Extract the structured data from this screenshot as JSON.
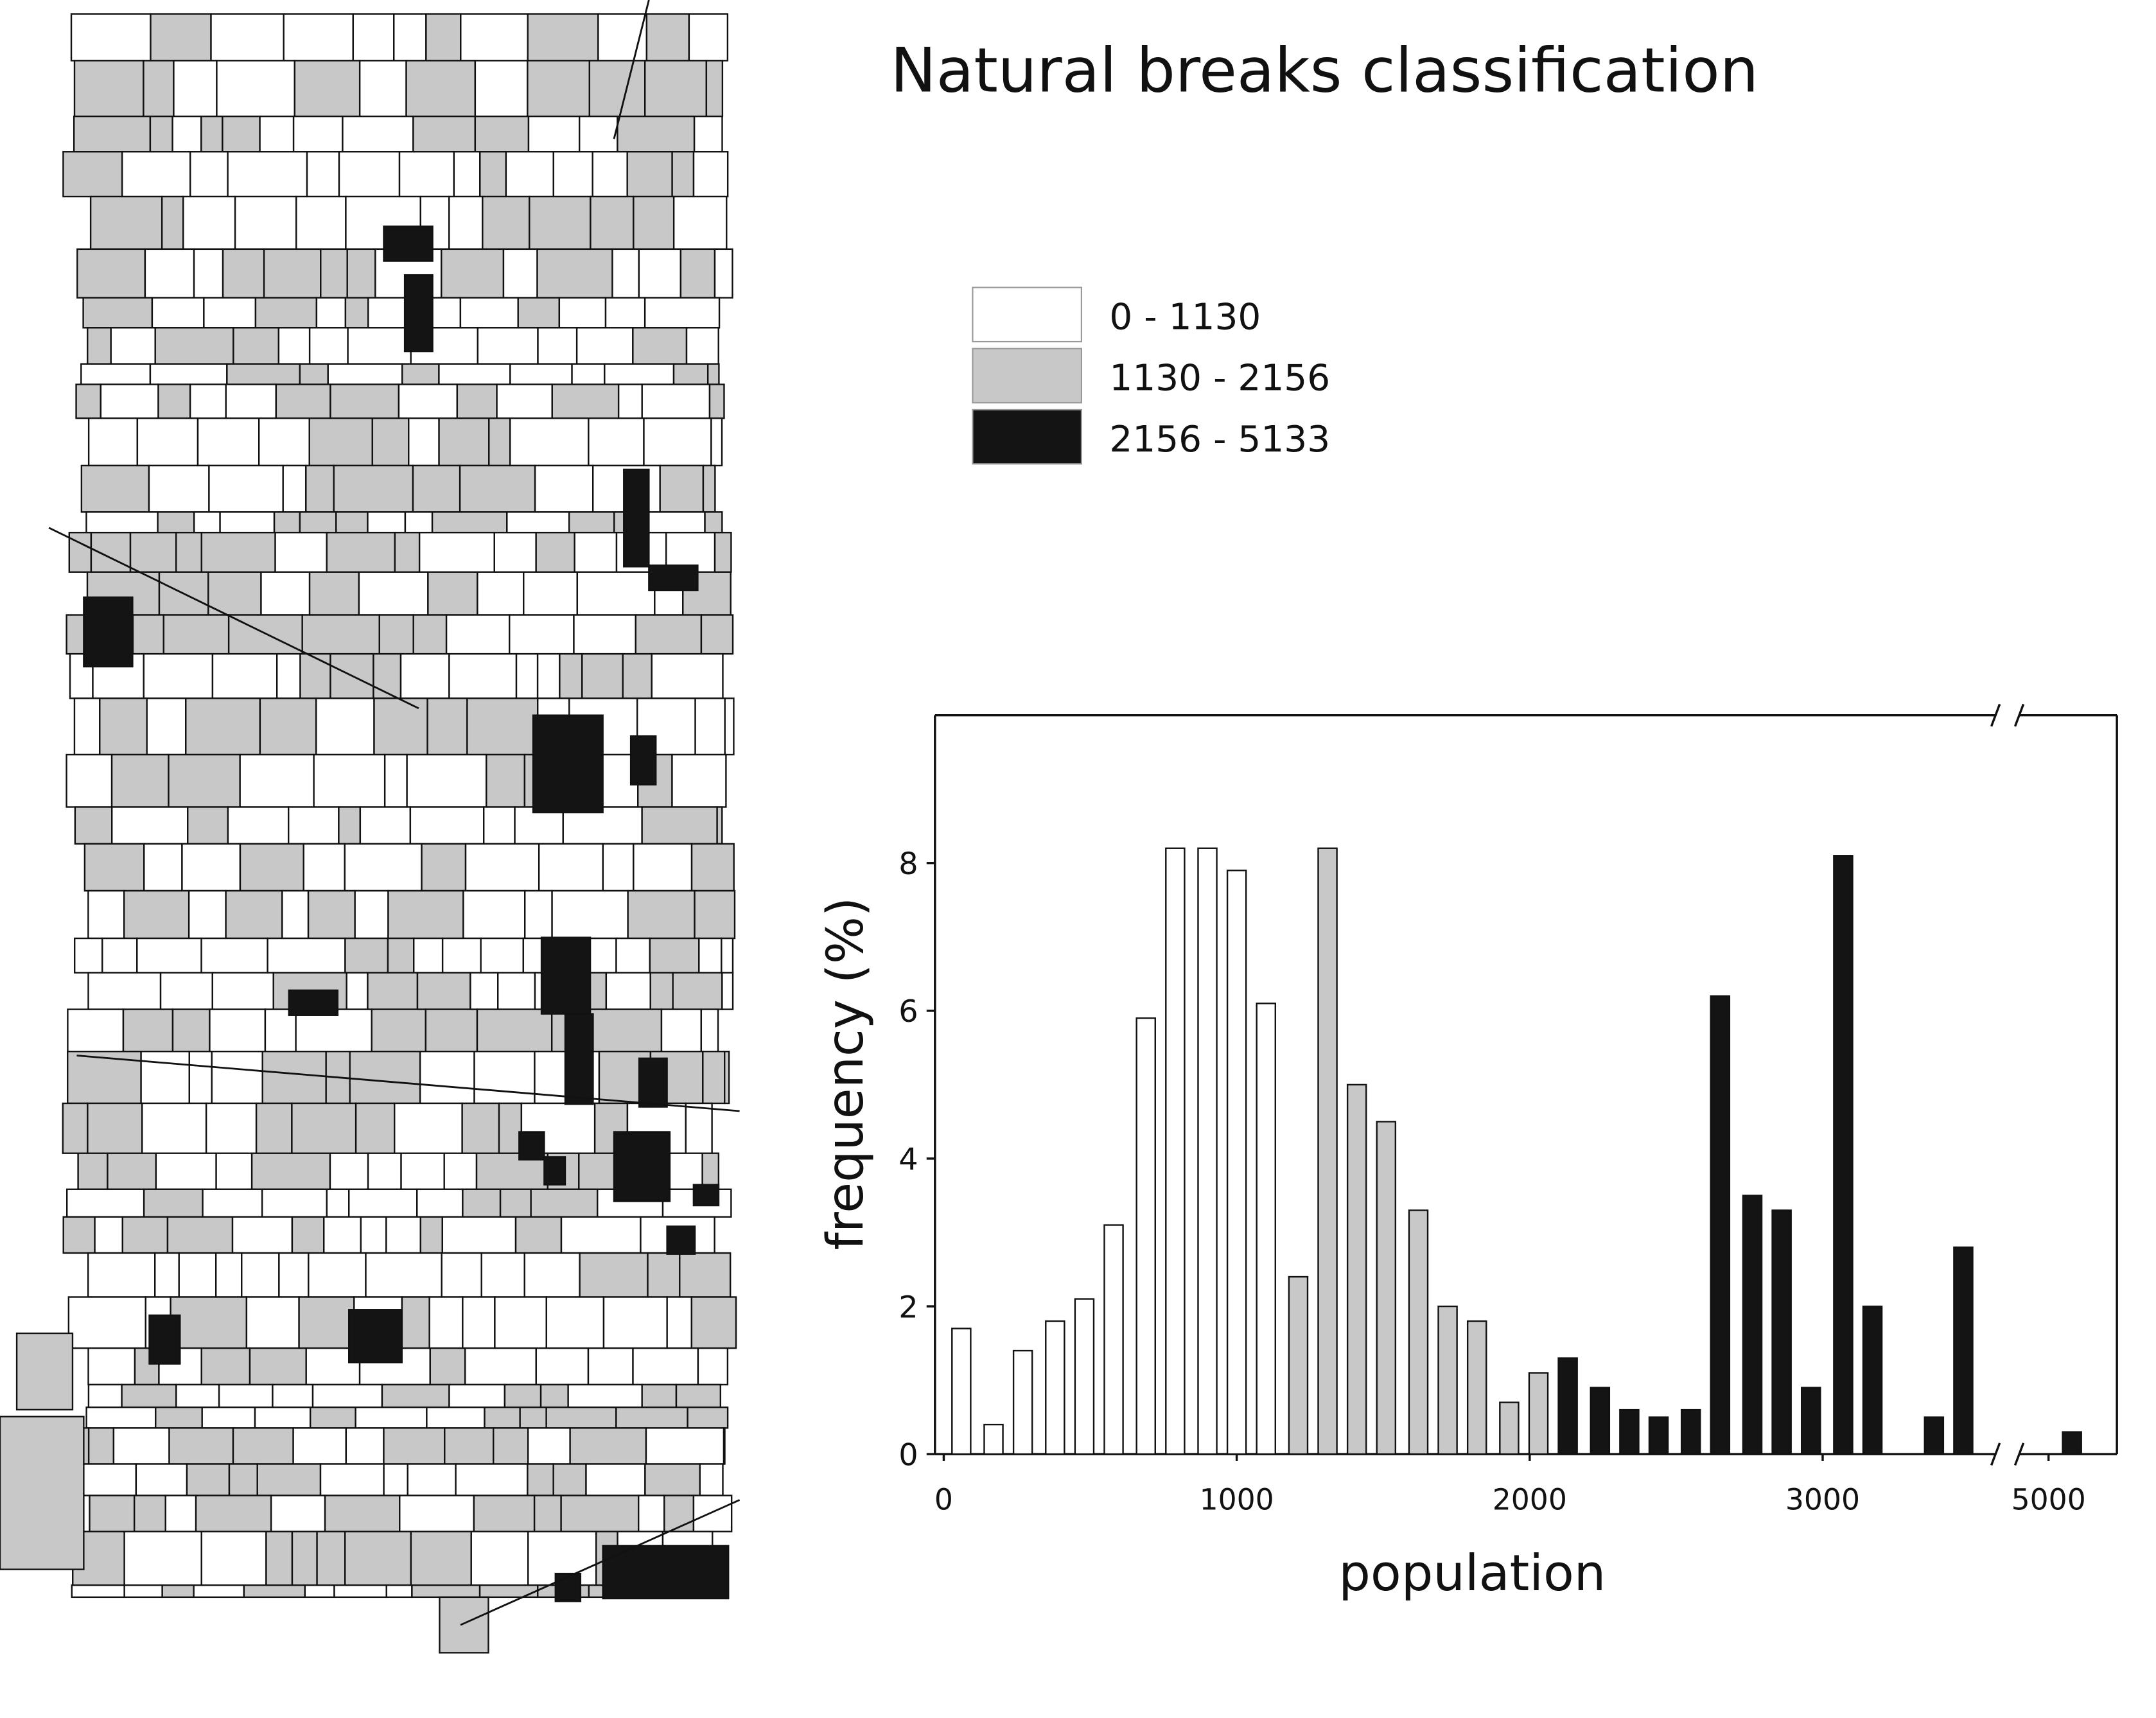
{
  "chart_data": {
    "type": "histogram",
    "title": "Natural breaks classification",
    "x_label": "population",
    "y_label": "frequency (%)",
    "xlim": [
      -30,
      5240
    ],
    "xbreak": [
      3590,
      4900
    ],
    "xticks": [
      0,
      1000,
      2000,
      3000,
      5000
    ],
    "ylim": [
      0,
      10
    ],
    "yticks": [
      0,
      2,
      4,
      6,
      8
    ],
    "series": [
      {
        "name": "0 - 1130",
        "color": "#ffffff",
        "x": [
          60,
          170,
          270,
          380,
          480,
          580,
          690,
          790,
          900,
          1000,
          1100
        ],
        "values": [
          1.7,
          0.4,
          1.4,
          1.8,
          2.1,
          3.1,
          5.9,
          8.2,
          8.2,
          7.9,
          6.1
        ]
      },
      {
        "name": "1130 - 2156",
        "color": "#c8c8c8",
        "x": [
          1210,
          1310,
          1410,
          1510,
          1620,
          1720,
          1820,
          1930,
          2030
        ],
        "values": [
          2.4,
          8.2,
          5.0,
          4.5,
          3.3,
          2.0,
          1.8,
          0.7,
          1.1
        ]
      },
      {
        "name": "2156 - 5133",
        "color": "#141414",
        "x": [
          2130,
          2240,
          2340,
          2440,
          2550,
          2650,
          2760,
          2860,
          2960,
          3070,
          3170,
          3380,
          3480,
          5080
        ],
        "values": [
          1.3,
          0.9,
          0.6,
          0.5,
          0.6,
          6.2,
          3.5,
          3.3,
          0.9,
          8.1,
          2.0,
          0.5,
          2.8,
          0.3
        ]
      }
    ]
  }
}
